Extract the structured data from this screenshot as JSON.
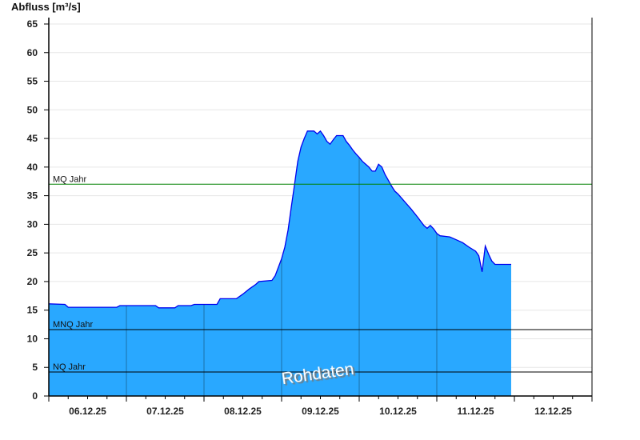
{
  "chart_data": {
    "type": "area",
    "ylabel": "Abfluss [m³/s]",
    "ylim": [
      0,
      65
    ],
    "yticks": [
      0,
      5,
      10,
      15,
      20,
      25,
      30,
      35,
      40,
      45,
      50,
      55,
      60,
      65
    ],
    "xlim": [
      "2025-12-06T00:00",
      "2025-12-13T00:00"
    ],
    "xticks": [
      "06.12.25",
      "07.12.25",
      "08.12.25",
      "09.12.25",
      "10.12.25",
      "11.12.25",
      "12.12.25"
    ],
    "grid": true,
    "watermark": "Rohdaten",
    "colors": {
      "fill": "#29a8ff",
      "line": "#0000ee",
      "mq": "#008000",
      "ref": "#000000",
      "grid": "#e6e6e6"
    },
    "reference_lines": [
      {
        "label": "MQ Jahr",
        "value": 37.0
      },
      {
        "label": "MNQ Jahr",
        "value": 11.6
      },
      {
        "label": "NQ Jahr",
        "value": 4.2
      }
    ],
    "series": [
      {
        "points": [
          [
            "2025-12-06T00:00",
            16.1
          ],
          [
            "2025-12-06T05:00",
            16.0
          ],
          [
            "2025-12-06T06:00",
            15.5
          ],
          [
            "2025-12-06T21:00",
            15.5
          ],
          [
            "2025-12-06T22:00",
            15.8
          ],
          [
            "2025-12-07T09:00",
            15.8
          ],
          [
            "2025-12-07T10:00",
            15.4
          ],
          [
            "2025-12-07T15:00",
            15.4
          ],
          [
            "2025-12-07T16:00",
            15.8
          ],
          [
            "2025-12-07T20:00",
            15.8
          ],
          [
            "2025-12-07T21:00",
            16.0
          ],
          [
            "2025-12-08T04:00",
            16.0
          ],
          [
            "2025-12-08T05:00",
            17.0
          ],
          [
            "2025-12-08T10:00",
            17.0
          ],
          [
            "2025-12-08T12:00",
            17.8
          ],
          [
            "2025-12-08T14:00",
            18.7
          ],
          [
            "2025-12-08T16:00",
            19.5
          ],
          [
            "2025-12-08T17:00",
            20.0
          ],
          [
            "2025-12-08T21:00",
            20.2
          ],
          [
            "2025-12-08T22:00",
            21.0
          ],
          [
            "2025-12-08T23:00",
            22.5
          ],
          [
            "2025-12-09T00:00",
            24.0
          ],
          [
            "2025-12-09T01:00",
            26.0
          ],
          [
            "2025-12-09T02:00",
            29.0
          ],
          [
            "2025-12-09T03:00",
            33.0
          ],
          [
            "2025-12-09T04:00",
            37.0
          ],
          [
            "2025-12-09T05:00",
            41.0
          ],
          [
            "2025-12-09T06:00",
            43.5
          ],
          [
            "2025-12-09T07:00",
            45.0
          ],
          [
            "2025-12-09T08:00",
            46.3
          ],
          [
            "2025-12-09T10:00",
            46.3
          ],
          [
            "2025-12-09T11:00",
            45.8
          ],
          [
            "2025-12-09T12:00",
            46.3
          ],
          [
            "2025-12-09T13:00",
            45.5
          ],
          [
            "2025-12-09T14:00",
            44.5
          ],
          [
            "2025-12-09T15:00",
            44.0
          ],
          [
            "2025-12-09T16:00",
            44.8
          ],
          [
            "2025-12-09T17:00",
            45.5
          ],
          [
            "2025-12-09T19:00",
            45.5
          ],
          [
            "2025-12-09T20:00",
            44.5
          ],
          [
            "2025-12-09T21:00",
            43.8
          ],
          [
            "2025-12-09T22:00",
            43.0
          ],
          [
            "2025-12-09T23:00",
            42.3
          ],
          [
            "2025-12-10T00:00",
            41.7
          ],
          [
            "2025-12-10T01:00",
            41.0
          ],
          [
            "2025-12-10T02:00",
            40.5
          ],
          [
            "2025-12-10T03:00",
            40.0
          ],
          [
            "2025-12-10T04:00",
            39.3
          ],
          [
            "2025-12-10T05:00",
            39.3
          ],
          [
            "2025-12-10T06:00",
            40.5
          ],
          [
            "2025-12-10T07:00",
            40.0
          ],
          [
            "2025-12-10T08:00",
            38.7
          ],
          [
            "2025-12-10T09:00",
            37.7
          ],
          [
            "2025-12-10T10:00",
            36.7
          ],
          [
            "2025-12-10T11:00",
            35.8
          ],
          [
            "2025-12-10T12:00",
            35.3
          ],
          [
            "2025-12-10T14:00",
            34.0
          ],
          [
            "2025-12-10T16:00",
            32.7
          ],
          [
            "2025-12-10T18:00",
            31.3
          ],
          [
            "2025-12-10T20:00",
            29.8
          ],
          [
            "2025-12-10T21:00",
            29.3
          ],
          [
            "2025-12-10T22:00",
            29.8
          ],
          [
            "2025-12-10T23:00",
            29.2
          ],
          [
            "2025-12-11T00:00",
            28.4
          ],
          [
            "2025-12-11T01:00",
            28.0
          ],
          [
            "2025-12-11T04:00",
            27.8
          ],
          [
            "2025-12-11T06:00",
            27.3
          ],
          [
            "2025-12-11T08:00",
            26.8
          ],
          [
            "2025-12-11T10:00",
            26.0
          ],
          [
            "2025-12-11T12:00",
            25.3
          ],
          [
            "2025-12-11T13:00",
            24.5
          ],
          [
            "2025-12-11T14:00",
            21.7
          ],
          [
            "2025-12-11T15:00",
            26.2
          ],
          [
            "2025-12-11T16:00",
            24.8
          ],
          [
            "2025-12-11T17:00",
            23.6
          ],
          [
            "2025-12-11T18:00",
            23.0
          ],
          [
            "2025-12-11T23:00",
            23.0
          ]
        ]
      }
    ]
  }
}
